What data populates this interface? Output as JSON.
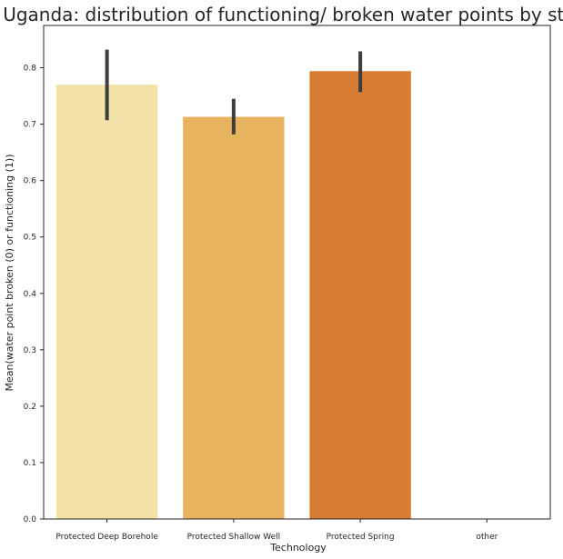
{
  "chart_data": {
    "type": "bar",
    "title": "Uganda: distribution of functioning/ broken water points by state",
    "xlabel": "Technology",
    "ylabel": "Mean(water point broken (0) or functioning (1))",
    "categories": [
      "Protected Deep Borehole",
      "Protected Shallow Well",
      "Protected Spring",
      "other"
    ],
    "values": [
      0.77,
      0.713,
      0.794,
      0.0
    ],
    "error_low": [
      0.707,
      0.682,
      0.757,
      null
    ],
    "error_high": [
      0.832,
      0.745,
      0.829,
      null
    ],
    "colors": [
      "#f2e2a8",
      "#e8b35e",
      "#d77c33",
      "#ffffff"
    ],
    "ylim": [
      0,
      0.875
    ],
    "yticks": [
      "0.0",
      "0.1",
      "0.2",
      "0.3",
      "0.4",
      "0.5",
      "0.6",
      "0.7",
      "0.8"
    ],
    "grid": false
  }
}
